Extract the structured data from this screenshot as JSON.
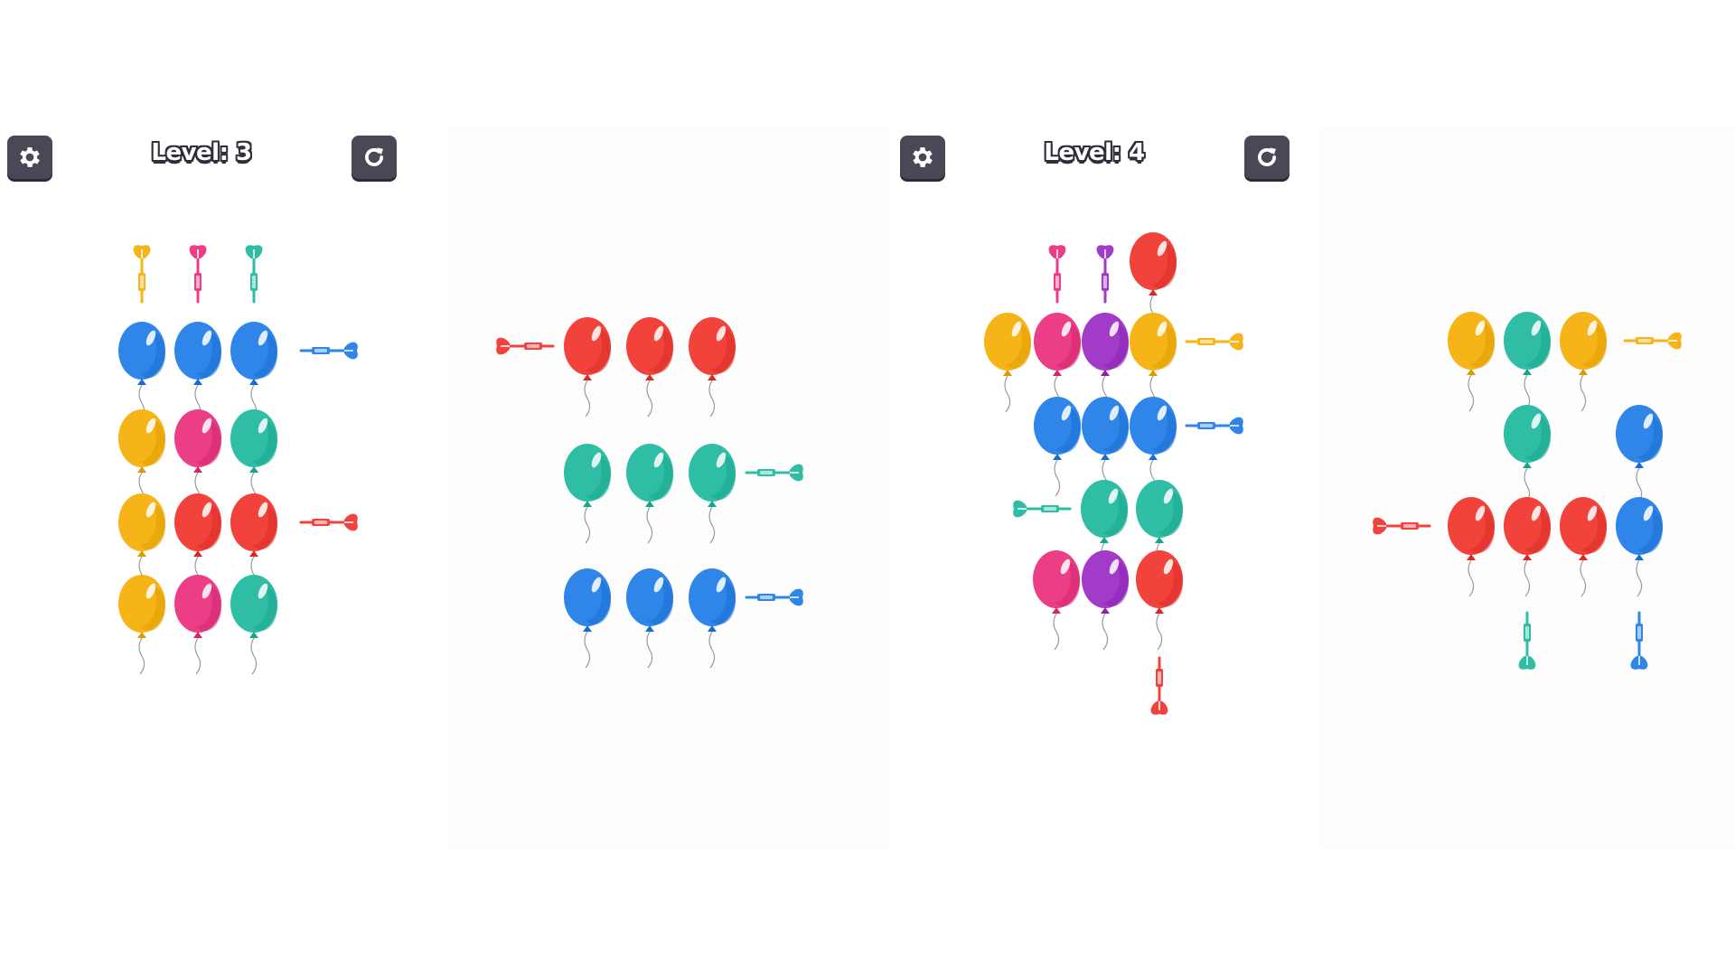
{
  "levels": [
    {
      "label": "Level: 3"
    },
    {
      "label": "Level: 4"
    }
  ],
  "colors": {
    "blue": "#2f86e8",
    "yellow": "#f7b419",
    "pink": "#ec3d87",
    "teal": "#2fbea5",
    "red": "#f1433c",
    "purple": "#a33bc9",
    "button_bg": "#4a4856"
  },
  "icons": [
    "gear-icon",
    "restart-icon",
    "balloon",
    "dart"
  ],
  "puzzles": [
    {
      "name": "level-3-puzzle",
      "balloons": [
        {
          "row": 0,
          "col": 0,
          "color": "blue"
        },
        {
          "row": 0,
          "col": 1,
          "color": "blue"
        },
        {
          "row": 0,
          "col": 2,
          "color": "blue"
        },
        {
          "row": 1,
          "col": 0,
          "color": "yellow"
        },
        {
          "row": 1,
          "col": 1,
          "color": "pink"
        },
        {
          "row": 1,
          "col": 2,
          "color": "teal"
        },
        {
          "row": 2,
          "col": 0,
          "color": "yellow"
        },
        {
          "row": 2,
          "col": 1,
          "color": "red"
        },
        {
          "row": 2,
          "col": 2,
          "color": "red"
        },
        {
          "row": 3,
          "col": 0,
          "color": "yellow"
        },
        {
          "row": 3,
          "col": 1,
          "color": "pink"
        },
        {
          "row": 3,
          "col": 2,
          "color": "teal"
        }
      ],
      "darts": [
        {
          "color": "yellow",
          "side": "top",
          "lane": 0
        },
        {
          "color": "pink",
          "side": "top",
          "lane": 1
        },
        {
          "color": "teal",
          "side": "top",
          "lane": 2
        },
        {
          "color": "blue",
          "side": "right",
          "lane": 0
        },
        {
          "color": "red",
          "side": "right",
          "lane": 2
        }
      ]
    },
    {
      "name": "level-3-solution-preview",
      "balloons": [
        {
          "row": 0,
          "col": 0,
          "color": "red"
        },
        {
          "row": 0,
          "col": 1,
          "color": "red"
        },
        {
          "row": 0,
          "col": 2,
          "color": "red"
        },
        {
          "row": 1,
          "col": 0,
          "color": "teal"
        },
        {
          "row": 1,
          "col": 1,
          "color": "teal"
        },
        {
          "row": 1,
          "col": 2,
          "color": "teal"
        },
        {
          "row": 2,
          "col": 0,
          "color": "blue"
        },
        {
          "row": 2,
          "col": 1,
          "color": "blue"
        },
        {
          "row": 2,
          "col": 2,
          "color": "blue"
        }
      ],
      "darts": [
        {
          "color": "red",
          "side": "left",
          "lane": 0
        },
        {
          "color": "teal",
          "side": "right",
          "lane": 1
        },
        {
          "color": "blue",
          "side": "right",
          "lane": 2
        }
      ]
    },
    {
      "name": "level-4-puzzle",
      "balloons": [
        {
          "row": 0,
          "col": 3,
          "color": "red"
        },
        {
          "row": 1,
          "col": 0,
          "color": "yellow"
        },
        {
          "row": 1,
          "col": 1,
          "color": "pink"
        },
        {
          "row": 1,
          "col": 2,
          "color": "purple"
        },
        {
          "row": 1,
          "col": 3,
          "color": "yellow"
        },
        {
          "row": 2,
          "col": 1,
          "color": "blue"
        },
        {
          "row": 2,
          "col": 2,
          "color": "blue"
        },
        {
          "row": 2,
          "col": 3,
          "color": "blue"
        },
        {
          "row": 3,
          "col": 2,
          "color": "teal"
        },
        {
          "row": 3,
          "col": 3,
          "color": "teal"
        },
        {
          "row": 4,
          "col": 1,
          "color": "pink"
        },
        {
          "row": 4,
          "col": 2,
          "color": "purple"
        },
        {
          "row": 4,
          "col": 3,
          "color": "red"
        }
      ],
      "darts": [
        {
          "color": "pink",
          "side": "top",
          "lane": 1
        },
        {
          "color": "purple",
          "side": "top",
          "lane": 2
        },
        {
          "color": "yellow",
          "side": "right",
          "lane": 1
        },
        {
          "color": "blue",
          "side": "right",
          "lane": 2
        },
        {
          "color": "teal",
          "side": "left",
          "lane": 3
        },
        {
          "color": "red",
          "side": "bottom",
          "lane": 3
        }
      ]
    },
    {
      "name": "level-4-solution-preview",
      "balloons": [
        {
          "row": 0,
          "col": 0,
          "color": "yellow"
        },
        {
          "row": 0,
          "col": 1,
          "color": "teal"
        },
        {
          "row": 0,
          "col": 2,
          "color": "yellow"
        },
        {
          "row": 1,
          "col": 1,
          "color": "teal"
        },
        {
          "row": 1,
          "col": 3,
          "color": "blue"
        },
        {
          "row": 2,
          "col": 0,
          "color": "red"
        },
        {
          "row": 2,
          "col": 1,
          "color": "red"
        },
        {
          "row": 2,
          "col": 2,
          "color": "red"
        },
        {
          "row": 2,
          "col": 3,
          "color": "blue"
        }
      ],
      "darts": [
        {
          "color": "yellow",
          "side": "right",
          "lane": 0
        },
        {
          "color": "red",
          "side": "left",
          "lane": 2
        },
        {
          "color": "teal",
          "side": "bottom",
          "lane": 1
        },
        {
          "color": "blue",
          "side": "bottom",
          "lane": 3
        }
      ]
    }
  ]
}
